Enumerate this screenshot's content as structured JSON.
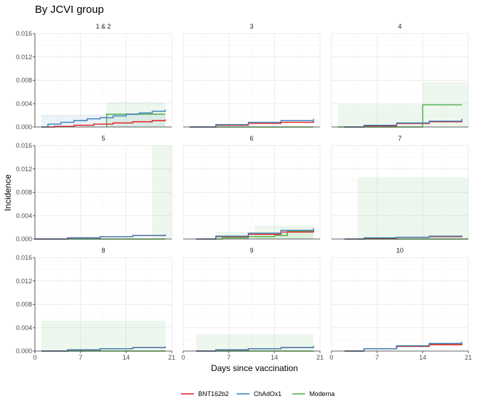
{
  "chart_data": {
    "type": "line",
    "title": "By JCVI group",
    "xlabel": "Days since vaccination",
    "ylabel": "Incidence",
    "xlim": [
      0,
      21
    ],
    "ylim": [
      0,
      0.016
    ],
    "xticks": [
      0,
      7,
      14,
      21
    ],
    "yticks": [
      0,
      0.004,
      0.008,
      0.012,
      0.016
    ],
    "xtick_labels": [
      "0",
      "7",
      "14",
      "21"
    ],
    "ytick_labels": [
      "0.000",
      "0.004",
      "0.008",
      "0.012",
      "0.016"
    ],
    "grid": true,
    "legend_position": "bottom",
    "legend": [
      {
        "name": "BNT162b2",
        "color": "#e41a1c"
      },
      {
        "name": "ChAdOx1",
        "color": "#377eb8"
      },
      {
        "name": "Moderna",
        "color": "#4daf4a"
      }
    ],
    "panels": [
      {
        "label": "1 & 2",
        "series": {
          "BNT162b2": {
            "x": [
              1,
              3,
              6,
              9,
              12,
              15,
              18,
              20
            ],
            "y": [
              0,
              0.0001,
              0.0003,
              0.0005,
              0.0007,
              0.0009,
              0.0011,
              0.0013
            ]
          },
          "ChAdOx1": {
            "x": [
              1,
              2,
              4,
              6,
              8,
              10,
              12,
              14,
              16,
              18,
              20
            ],
            "y": [
              0,
              0.0005,
              0.0008,
              0.0011,
              0.0014,
              0.0016,
              0.0019,
              0.0022,
              0.0024,
              0.0027,
              0.003
            ]
          },
          "Moderna": {
            "x": [
              11,
              11,
              20
            ],
            "y": [
              0,
              0.0022,
              0.0022
            ]
          }
        },
        "bands": [
          {
            "series": "ChAdOx1",
            "x": [
              1,
              20
            ],
            "lower": 0,
            "upper": 0.0021
          },
          {
            "series": "Moderna",
            "x": [
              11,
              20
            ],
            "lower": 0,
            "upper": 0.0043
          }
        ]
      },
      {
        "label": "3",
        "series": {
          "BNT162b2": {
            "x": [
              1,
              5,
              10,
              15,
              20
            ],
            "y": [
              0,
              0.0003,
              0.0006,
              0.0008,
              0.001
            ]
          },
          "ChAdOx1": {
            "x": [
              1,
              5,
              10,
              15,
              20
            ],
            "y": [
              0,
              0.0004,
              0.0008,
              0.0011,
              0.0014
            ]
          },
          "Moderna": {
            "x": [
              1,
              20
            ],
            "y": [
              0,
              0
            ]
          }
        },
        "bands": []
      },
      {
        "label": "4",
        "series": {
          "BNT162b2": {
            "x": [
              2,
              5,
              10,
              15,
              20
            ],
            "y": [
              0,
              0.0002,
              0.0006,
              0.0009,
              0.0012
            ]
          },
          "ChAdOx1": {
            "x": [
              2,
              5,
              10,
              15,
              20
            ],
            "y": [
              0,
              0.0003,
              0.0007,
              0.001,
              0.0014
            ]
          },
          "Moderna": {
            "x": [
              1,
              14,
              14,
              20
            ],
            "y": [
              0,
              0,
              0.0038,
              0.0038
            ]
          }
        },
        "bands": [
          {
            "series": "Moderna",
            "x": [
              1,
              14
            ],
            "lower": 0,
            "upper": 0.0039
          },
          {
            "series": "Moderna",
            "x": [
              14,
              21
            ],
            "lower": 0,
            "upper": 0.0077
          }
        ]
      },
      {
        "label": "5",
        "series": {
          "BNT162b2": {
            "x": [
              0,
              5,
              10,
              15,
              20
            ],
            "y": [
              0,
              0.0002,
              0.0004,
              0.0006,
              0.0007
            ]
          },
          "ChAdOx1": {
            "x": [
              0,
              5,
              10,
              15,
              20
            ],
            "y": [
              0,
              0.0002,
              0.0004,
              0.0006,
              0.0008
            ]
          },
          "Moderna": {
            "x": [
              0,
              20
            ],
            "y": [
              0,
              0
            ]
          }
        },
        "bands": [
          {
            "series": "Moderna",
            "x": [
              18,
              21
            ],
            "lower": 0,
            "upper": 0.016
          }
        ]
      },
      {
        "label": "6",
        "series": {
          "BNT162b2": {
            "x": [
              2,
              5,
              10,
              15,
              20
            ],
            "y": [
              0,
              0.0004,
              0.0008,
              0.0012,
              0.0016
            ]
          },
          "ChAdOx1": {
            "x": [
              2,
              5,
              10,
              15,
              20
            ],
            "y": [
              0,
              0.0005,
              0.001,
              0.0015,
              0.0019
            ]
          },
          "Moderna": {
            "x": [
              3,
              6,
              10,
              14,
              16,
              16,
              20
            ],
            "y": [
              0,
              0.0002,
              0.0004,
              0.0006,
              0.0008,
              0.0013,
              0.0013
            ]
          }
        },
        "bands": [
          {
            "series": "Moderna",
            "x": [
              5,
              20
            ],
            "lower": 0,
            "upper": 0.0012
          },
          {
            "series": "Moderna",
            "x": [
              11,
              20
            ],
            "lower": 0,
            "upper": 0.0023
          }
        ]
      },
      {
        "label": "7",
        "series": {
          "BNT162b2": {
            "x": [
              2,
              5,
              10,
              15,
              20
            ],
            "y": [
              0,
              0.0001,
              0.0003,
              0.0004,
              0.0006
            ]
          },
          "ChAdOx1": {
            "x": [
              2,
              5,
              10,
              15,
              20
            ],
            "y": [
              0,
              0.0002,
              0.0003,
              0.0005,
              0.0006
            ]
          },
          "Moderna": {
            "x": [
              4,
              21
            ],
            "y": [
              0,
              0
            ]
          }
        },
        "bands": [
          {
            "series": "Moderna",
            "x": [
              4,
              21
            ],
            "lower": 0,
            "upper": 0.0106
          }
        ]
      },
      {
        "label": "8",
        "series": {
          "BNT162b2": {
            "x": [
              1,
              5,
              10,
              15,
              20
            ],
            "y": [
              0,
              0.0002,
              0.0004,
              0.0006,
              0.0008
            ]
          },
          "ChAdOx1": {
            "x": [
              1,
              5,
              10,
              15,
              20
            ],
            "y": [
              0,
              0.0002,
              0.0004,
              0.0006,
              0.0008
            ]
          },
          "Moderna": {
            "x": [
              1,
              20
            ],
            "y": [
              0,
              0
            ]
          }
        },
        "bands": [
          {
            "series": "Moderna",
            "x": [
              1,
              20
            ],
            "lower": 0,
            "upper": 0.0052
          }
        ]
      },
      {
        "label": "9",
        "series": {
          "BNT162b2": {
            "x": [
              2,
              5,
              10,
              15,
              20
            ],
            "y": [
              0,
              0.0002,
              0.0004,
              0.0006,
              0.0008
            ]
          },
          "ChAdOx1": {
            "x": [
              2,
              5,
              10,
              15,
              20
            ],
            "y": [
              0,
              0.0002,
              0.0004,
              0.0006,
              0.0009
            ]
          },
          "Moderna": {
            "x": [
              2,
              20
            ],
            "y": [
              0,
              0
            ]
          }
        },
        "bands": [
          {
            "series": "Moderna",
            "x": [
              2,
              20
            ],
            "lower": 0,
            "upper": 0.0029
          }
        ]
      },
      {
        "label": "10",
        "series": {
          "BNT162b2": {
            "x": [
              2,
              5,
              10,
              15,
              20
            ],
            "y": [
              0,
              0.0004,
              0.0008,
              0.0011,
              0.0013
            ]
          },
          "ChAdOx1": {
            "x": [
              2,
              5,
              10,
              15,
              20
            ],
            "y": [
              0,
              0.0004,
              0.0009,
              0.0013,
              0.0016
            ]
          },
          "Moderna": {
            "x": [
              2,
              5,
              10,
              15,
              20
            ],
            "y": [
              0,
              0.0004,
              0.0008,
              0.0011,
              0.0013
            ]
          }
        },
        "bands": []
      }
    ]
  }
}
